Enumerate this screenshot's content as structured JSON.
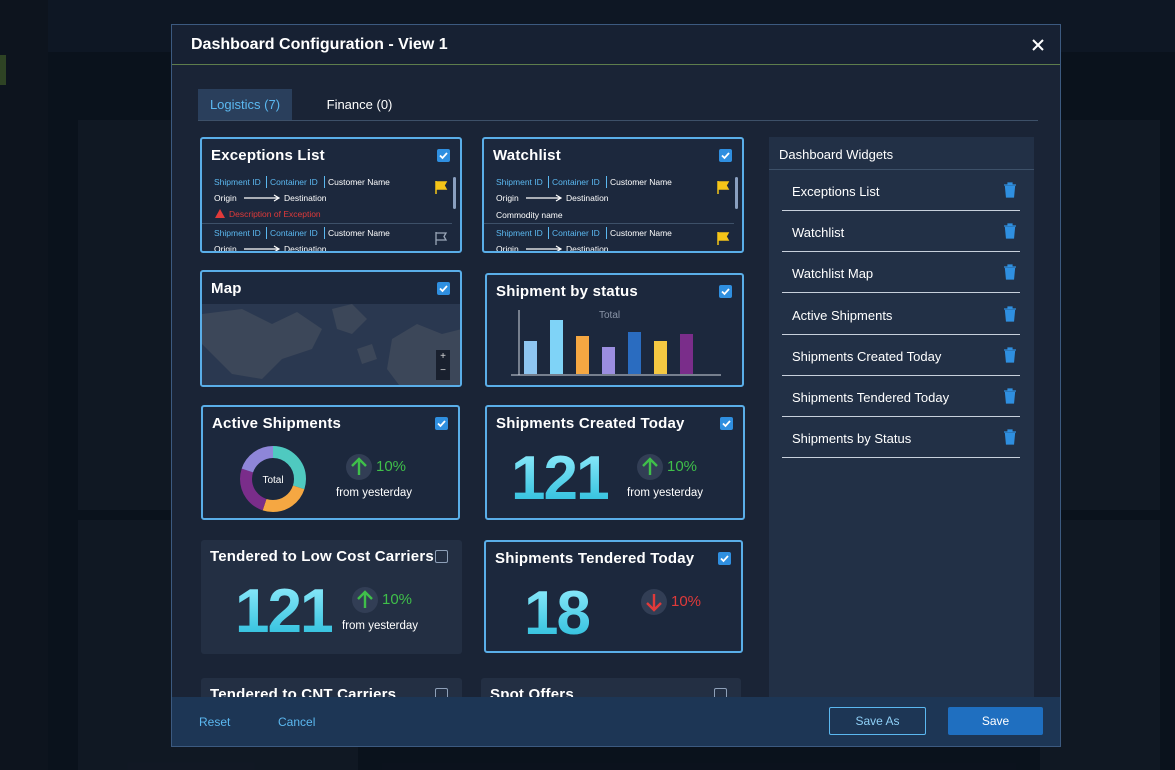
{
  "dialog": {
    "title": "Dashboard Configuration - View 1"
  },
  "tabs": [
    {
      "label": "Logistics (7)",
      "active": true
    },
    {
      "label": "Finance (0)",
      "active": false
    }
  ],
  "widgets": [
    {
      "type": "list",
      "title": "Exceptions List",
      "checked": true,
      "rows": [
        {
          "fields": [
            "Shipment ID",
            "Container ID",
            "Customer Name"
          ],
          "origin": "Origin",
          "destination": "Destination",
          "note": "Description of Exception",
          "flagged": true
        },
        {
          "fields": [
            "Shipment ID",
            "Container ID",
            "Customer Name"
          ],
          "origin": "Origin",
          "destination": "Destination",
          "flagged": false
        }
      ]
    },
    {
      "type": "list",
      "title": "Watchlist",
      "checked": true,
      "rows": [
        {
          "fields": [
            "Shipment ID",
            "Container ID",
            "Customer Name"
          ],
          "origin": "Origin",
          "destination": "Destination",
          "commodity": "Commodity name",
          "flagged": true
        },
        {
          "fields": [
            "Shipment ID",
            "Container ID",
            "Customer Name"
          ],
          "origin": "Origin",
          "destination": "Destination",
          "flagged": true
        }
      ]
    },
    {
      "type": "map",
      "title": "Map",
      "checked": true,
      "zoom": [
        "+",
        "−"
      ]
    },
    {
      "type": "bar",
      "title": "Shipment by status",
      "checked": true,
      "label": "Total",
      "values": [
        33,
        54,
        38,
        27,
        42,
        33,
        40
      ],
      "colors": [
        "#8ec5f0",
        "#7fd3f7",
        "#f5a742",
        "#9b8ee0",
        "#2a6cc0",
        "#f5c842",
        "#7a2d8a"
      ]
    },
    {
      "type": "donut",
      "title": "Active Shipments",
      "checked": true,
      "label": "Total",
      "values": [
        30,
        25,
        25,
        20
      ],
      "colors": [
        "#4fc9c0",
        "#f5a742",
        "#7a2d8a",
        "#8e86d8"
      ],
      "change": "10%",
      "trend": "up",
      "caption": "from yesterday"
    },
    {
      "type": "kpi",
      "title": "Shipments Created Today",
      "checked": true,
      "value": 121,
      "change": "10%",
      "trend": "up",
      "caption": "from yesterday"
    },
    {
      "type": "kpi",
      "title": "Tendered to Low Cost Carriers",
      "checked": false,
      "value": 121,
      "change": "10%",
      "trend": "up",
      "caption": "from yesterday"
    },
    {
      "type": "kpi",
      "title": "Shipments Tendered Today",
      "checked": true,
      "value": 18,
      "change": "10%",
      "trend": "down"
    },
    {
      "type": "kpi",
      "title": "Tendered to CNT Carriers",
      "checked": false
    },
    {
      "type": "kpi",
      "title": "Spot Offers",
      "checked": false
    }
  ],
  "sidebar": {
    "title": "Dashboard Widgets",
    "items": [
      "Exceptions List",
      "Watchlist",
      "Watchlist Map",
      "Active Shipments",
      "Shipments Created Today",
      "Shipments Tendered Today",
      "Shipments by Status"
    ]
  },
  "footer": {
    "reset": "Reset",
    "cancel": "Cancel",
    "save_as": "Save As",
    "save": "Save"
  }
}
